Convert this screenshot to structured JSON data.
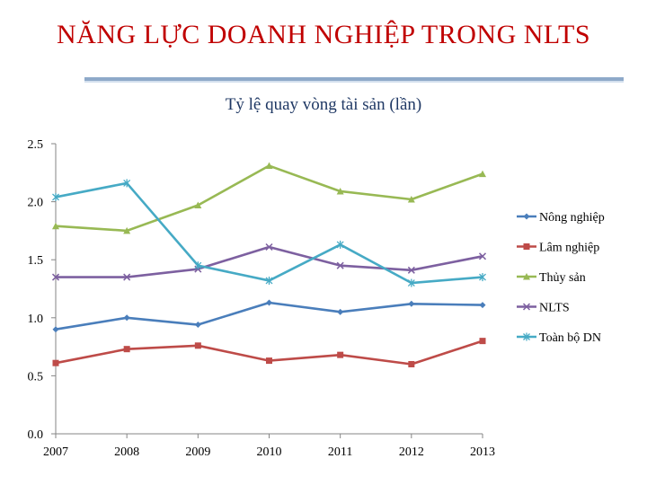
{
  "slide": {
    "title": "NĂNG LỰC DOANH NGHIỆP TRONG NLTS"
  },
  "chart_data": {
    "type": "line",
    "title": "Tỷ lệ quay vòng tài sản (lần)",
    "xlabel": "",
    "ylabel": "",
    "categories": [
      "2007",
      "2008",
      "2009",
      "2010",
      "2011",
      "2012",
      "2013"
    ],
    "ylim": [
      0,
      2.5
    ],
    "yticks": [
      "0.0",
      "0.5",
      "1.0",
      "1.5",
      "2.0",
      "2.5"
    ],
    "grid": false,
    "legend_position": "right",
    "series": [
      {
        "name": "Nông nghiệp",
        "color": "#4a7ebb",
        "marker": "diamond",
        "values": [
          0.9,
          1.0,
          0.94,
          1.13,
          1.05,
          1.12,
          1.11
        ]
      },
      {
        "name": "Lâm nghiệp",
        "color": "#be4b48",
        "marker": "square",
        "values": [
          0.61,
          0.73,
          0.76,
          0.63,
          0.68,
          0.6,
          0.8
        ]
      },
      {
        "name": "Thủy sản",
        "color": "#98b954",
        "marker": "triangle",
        "values": [
          1.79,
          1.75,
          1.97,
          2.31,
          2.09,
          2.02,
          2.24
        ]
      },
      {
        "name": "NLTS",
        "color": "#7d60a0",
        "marker": "x",
        "values": [
          1.35,
          1.35,
          1.42,
          1.61,
          1.45,
          1.41,
          1.53
        ]
      },
      {
        "name": "Toàn bộ DN",
        "color": "#46aac5",
        "marker": "star",
        "values": [
          2.04,
          2.16,
          1.45,
          1.32,
          1.63,
          1.3,
          1.35
        ]
      }
    ]
  }
}
